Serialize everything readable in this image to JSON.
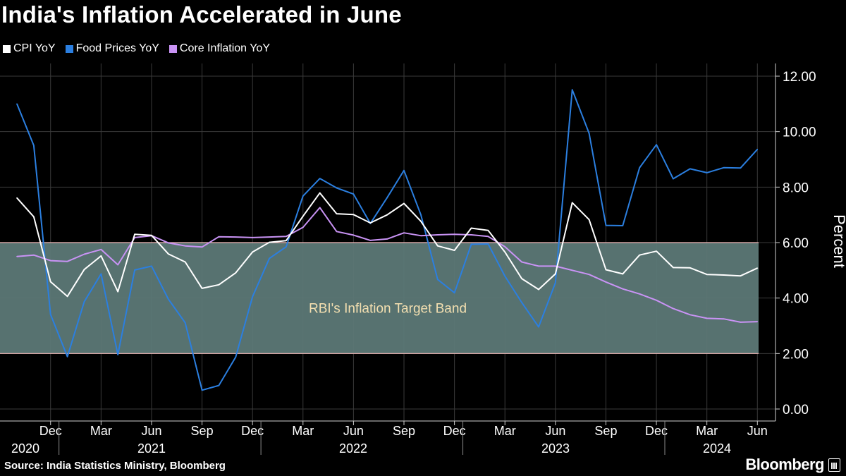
{
  "header": {
    "title": "India's Inflation Accelerated in June"
  },
  "footer": {
    "source": "Source: India Statistics Ministry, Bloomberg",
    "brand": "Bloomberg"
  },
  "colors": {
    "cpi": "#ffffff",
    "food": "#2b7fe0",
    "core": "#c993f5",
    "band_fill": "#5c7876",
    "band_edge": "#f2b8b8",
    "grid": "#3a3a3a"
  },
  "chart_data": {
    "type": "line",
    "title": "India's Inflation Accelerated in June",
    "ylabel": "Percent",
    "ylim": [
      0,
      12
    ],
    "yticks": [
      "0.00",
      "2.00",
      "4.00",
      "6.00",
      "8.00",
      "10.00",
      "12.00"
    ],
    "band": {
      "label": "RBI's Inflation Target Band",
      "from": 2,
      "to": 6
    },
    "x_tick_labels": [
      "Dec",
      "Mar",
      "Jun",
      "Sep",
      "Dec",
      "Mar",
      "Jun",
      "Sep",
      "Dec",
      "Mar",
      "Jun",
      "Sep",
      "Dec",
      "Mar",
      "Jun"
    ],
    "year_labels": [
      "2020",
      "2021",
      "2022",
      "2023",
      "2024"
    ],
    "x": [
      "2020-10",
      "2020-11",
      "2020-12",
      "2021-01",
      "2021-02",
      "2021-03",
      "2021-04",
      "2021-05",
      "2021-06",
      "2021-07",
      "2021-08",
      "2021-09",
      "2021-10",
      "2021-11",
      "2021-12",
      "2022-01",
      "2022-02",
      "2022-03",
      "2022-04",
      "2022-05",
      "2022-06",
      "2022-07",
      "2022-08",
      "2022-09",
      "2022-10",
      "2022-11",
      "2022-12",
      "2023-01",
      "2023-02",
      "2023-03",
      "2023-04",
      "2023-05",
      "2023-06",
      "2023-07",
      "2023-08",
      "2023-09",
      "2023-10",
      "2023-11",
      "2023-12",
      "2024-01",
      "2024-02",
      "2024-03",
      "2024-04",
      "2024-05",
      "2024-06"
    ],
    "series": [
      {
        "name": "CPI YoY",
        "values": [
          7.61,
          6.93,
          4.59,
          4.06,
          5.03,
          5.52,
          4.23,
          6.3,
          6.26,
          5.59,
          5.3,
          4.35,
          4.48,
          4.91,
          5.66,
          6.01,
          6.07,
          6.95,
          7.79,
          7.04,
          7.01,
          6.71,
          7.0,
          7.41,
          6.77,
          5.88,
          5.72,
          6.52,
          6.44,
          5.66,
          4.7,
          4.31,
          4.87,
          7.44,
          6.83,
          5.02,
          4.87,
          5.55,
          5.69,
          5.1,
          5.09,
          4.85,
          4.83,
          4.8,
          5.08
        ]
      },
      {
        "name": "Food Prices YoY",
        "values": [
          11.0,
          9.5,
          3.41,
          1.89,
          3.87,
          4.87,
          1.96,
          5.01,
          5.15,
          3.96,
          3.11,
          0.68,
          0.85,
          1.87,
          4.05,
          5.43,
          5.85,
          7.68,
          8.31,
          7.97,
          7.75,
          6.69,
          7.62,
          8.6,
          7.01,
          4.67,
          4.19,
          5.94,
          5.95,
          4.79,
          3.84,
          2.96,
          4.55,
          11.51,
          9.94,
          6.62,
          6.61,
          8.7,
          9.53,
          8.3,
          8.66,
          8.52,
          8.7,
          8.69,
          9.36
        ]
      },
      {
        "name": "Core Inflation YoY",
        "values": [
          5.5,
          5.55,
          5.35,
          5.32,
          5.58,
          5.75,
          5.2,
          6.18,
          6.25,
          5.99,
          5.88,
          5.84,
          6.21,
          6.2,
          6.18,
          6.2,
          6.22,
          6.55,
          7.26,
          6.4,
          6.27,
          6.08,
          6.13,
          6.35,
          6.25,
          6.28,
          6.3,
          6.28,
          6.22,
          5.85,
          5.3,
          5.15,
          5.15,
          5.0,
          4.85,
          4.58,
          4.33,
          4.15,
          3.92,
          3.62,
          3.4,
          3.27,
          3.25,
          3.13,
          3.15
        ]
      }
    ],
    "legend": "top-left"
  }
}
